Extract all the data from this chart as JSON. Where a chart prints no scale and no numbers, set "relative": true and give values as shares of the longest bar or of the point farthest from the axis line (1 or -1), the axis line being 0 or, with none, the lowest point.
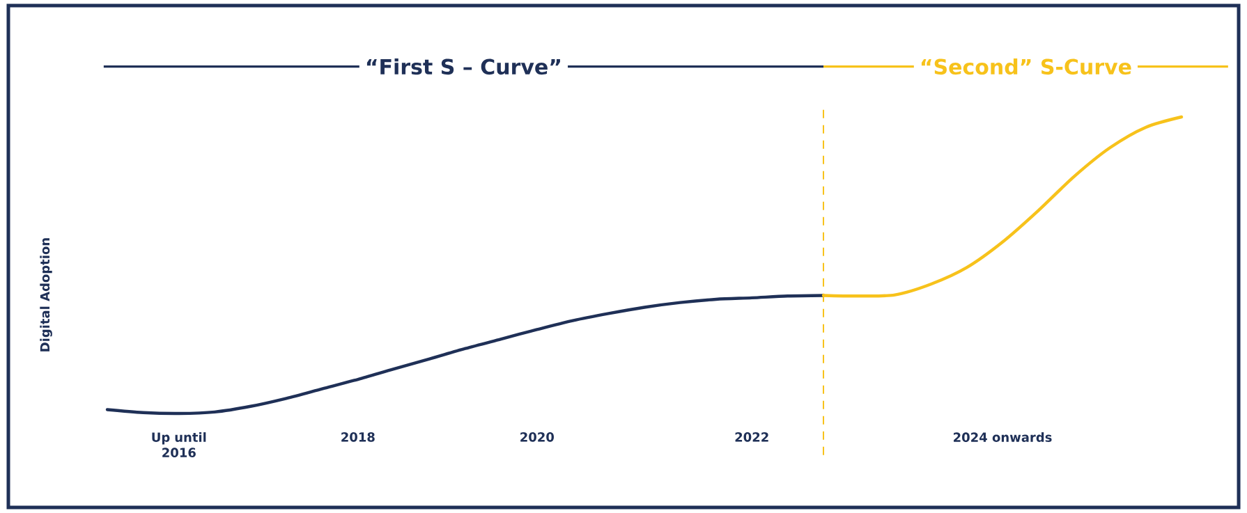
{
  "chart_data": {
    "type": "line",
    "relative": true,
    "ylabel": "Digital Adoption",
    "categories": [
      null,
      null,
      "Up until 2016",
      null,
      null,
      null,
      null,
      "2018",
      null,
      null,
      null,
      null,
      "2020",
      null,
      null,
      null,
      null,
      null,
      "2022",
      null,
      null,
      null,
      null,
      null,
      null,
      "2024 onwards",
      null,
      null,
      null,
      null,
      null
    ],
    "series": [
      {
        "color": "#1f3057",
        "values": [
          0.013,
          0.003,
          0,
          0.005,
          0.024,
          0.051,
          0.083,
          0.115,
          0.15,
          0.184,
          0.219,
          0.251,
          0.283,
          0.313,
          0.337,
          0.358,
          0.374,
          0.385,
          0.39,
          0.396,
          0.398,
          null,
          null,
          null,
          null,
          null,
          null,
          null,
          null,
          null,
          null
        ]
      },
      {
        "color": "#f7c21b",
        "values": [
          null,
          null,
          null,
          null,
          null,
          null,
          null,
          null,
          null,
          null,
          null,
          null,
          null,
          null,
          null,
          null,
          null,
          null,
          null,
          null,
          0.398,
          0.396,
          0.4,
          0.436,
          0.492,
          0.578,
          0.684,
          0.799,
          0.896,
          0.965,
          1
        ]
      }
    ],
    "annotations": [
      "“First S – Curve”",
      "“Second” S-Curve"
    ]
  }
}
